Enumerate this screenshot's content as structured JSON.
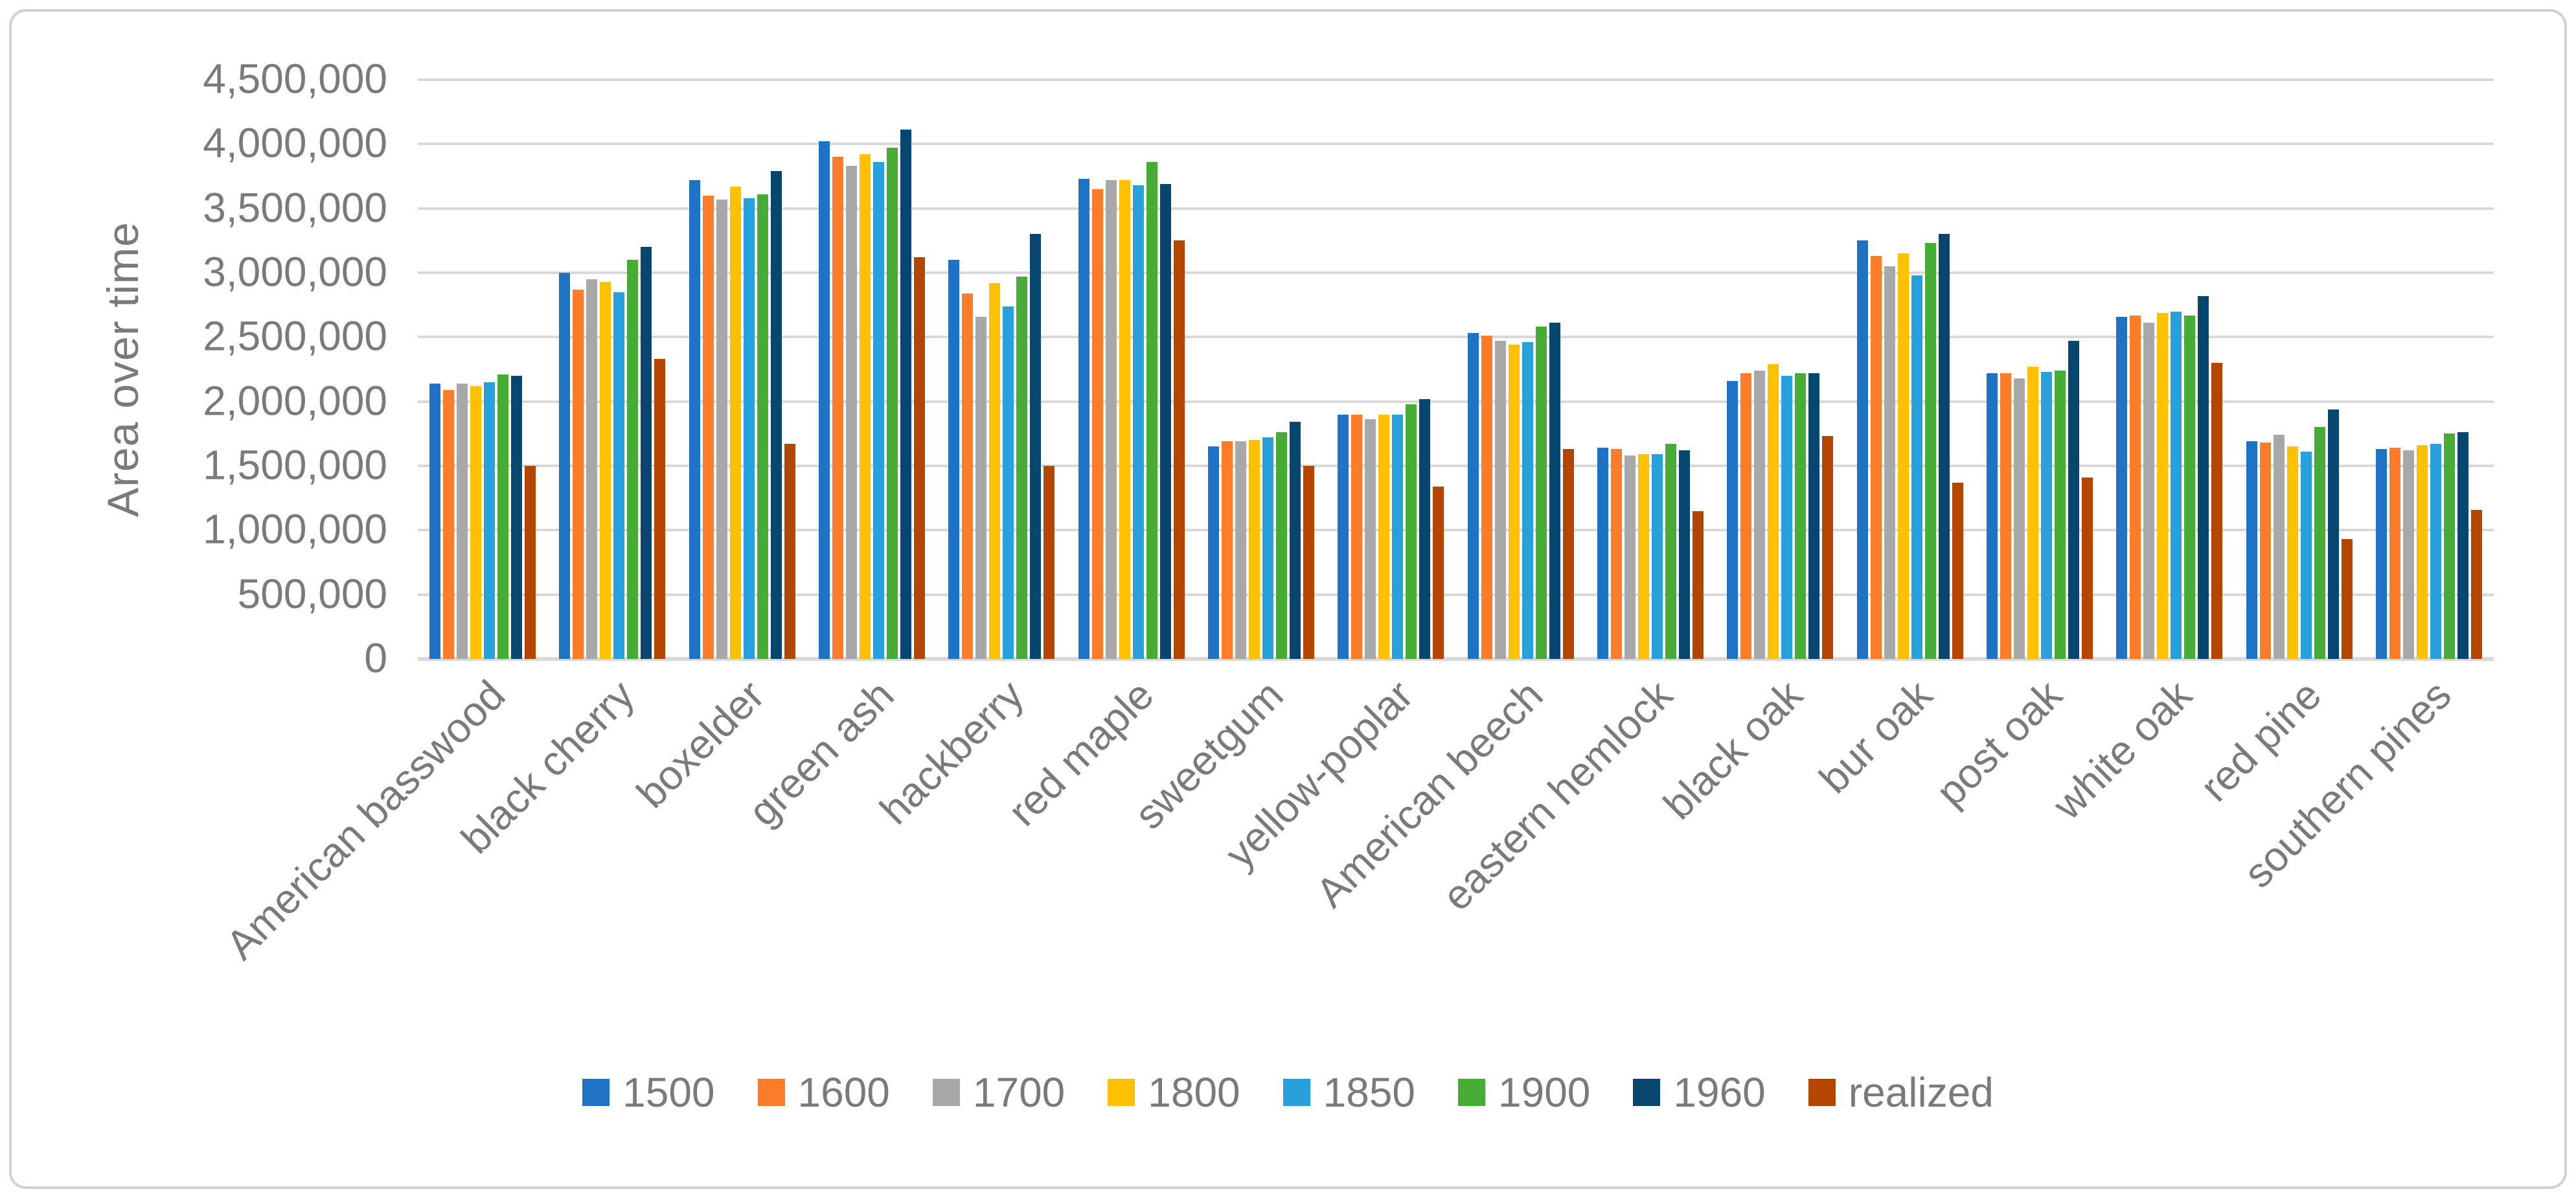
{
  "figure": {
    "background": "#ffffff",
    "border_color": "#d1d1d1",
    "text_color": "#7a7a7a",
    "gridline_color": "#d9d9d9"
  },
  "chart_data": {
    "type": "bar",
    "title": "",
    "xlabel": "",
    "ylabel": "Area over time",
    "ylim": [
      0,
      4500000
    ],
    "ytick_step": 500000,
    "ytick_labels_top_to_bottom": [
      "4,500,000",
      "4,000,000",
      "3,500,000",
      "3,000,000",
      "2,500,000",
      "2,000,000",
      "1,500,000",
      "1,000,000",
      "500,000",
      "0"
    ],
    "grid": "horizontal",
    "legend_position": "bottom-center",
    "categories": [
      "American basswood",
      "black cherry",
      "boxelder",
      "green ash",
      "hackberry",
      "red maple",
      "sweetgum",
      "yellow-poplar",
      "American beech",
      "eastern hemlock",
      "black oak",
      "bur oak",
      "post oak",
      "white oak",
      "red pine",
      "southern pines"
    ],
    "series": [
      {
        "name": "1500",
        "color": "#1e73c4",
        "values": [
          2140000,
          3000000,
          3720000,
          4020000,
          3100000,
          3730000,
          1650000,
          1900000,
          2530000,
          1640000,
          2160000,
          3250000,
          2220000,
          2660000,
          1690000,
          1630000
        ]
      },
      {
        "name": "1600",
        "color": "#fb7d29",
        "values": [
          2090000,
          2870000,
          3600000,
          3900000,
          2840000,
          3650000,
          1690000,
          1900000,
          2510000,
          1630000,
          2220000,
          3130000,
          2220000,
          2670000,
          1680000,
          1640000
        ]
      },
      {
        "name": "1700",
        "color": "#a8a8a8",
        "values": [
          2140000,
          2950000,
          3570000,
          3830000,
          2660000,
          3720000,
          1690000,
          1860000,
          2470000,
          1580000,
          2240000,
          3050000,
          2180000,
          2610000,
          1740000,
          1620000
        ]
      },
      {
        "name": "1800",
        "color": "#fec101",
        "values": [
          2120000,
          2930000,
          3670000,
          3920000,
          2920000,
          3720000,
          1700000,
          1900000,
          2440000,
          1590000,
          2290000,
          3150000,
          2270000,
          2690000,
          1650000,
          1660000
        ]
      },
      {
        "name": "1850",
        "color": "#27a0db",
        "values": [
          2150000,
          2850000,
          3580000,
          3860000,
          2740000,
          3680000,
          1720000,
          1900000,
          2460000,
          1590000,
          2200000,
          2980000,
          2230000,
          2700000,
          1610000,
          1670000
        ]
      },
      {
        "name": "1900",
        "color": "#47ac35",
        "values": [
          2210000,
          3100000,
          3610000,
          3970000,
          2970000,
          3860000,
          1760000,
          1980000,
          2580000,
          1670000,
          2220000,
          3230000,
          2240000,
          2670000,
          1800000,
          1750000
        ]
      },
      {
        "name": "1960",
        "color": "#07466f",
        "values": [
          2200000,
          3200000,
          3790000,
          4110000,
          3300000,
          3690000,
          1840000,
          2020000,
          2610000,
          1620000,
          2220000,
          3300000,
          2470000,
          2820000,
          1940000,
          1760000
        ]
      },
      {
        "name": "realized",
        "color": "#b54601",
        "values": [
          1500000,
          2330000,
          1670000,
          3120000,
          1500000,
          3250000,
          1500000,
          1340000,
          1630000,
          1150000,
          1730000,
          1370000,
          1410000,
          2300000,
          930000,
          1160000
        ]
      }
    ]
  }
}
